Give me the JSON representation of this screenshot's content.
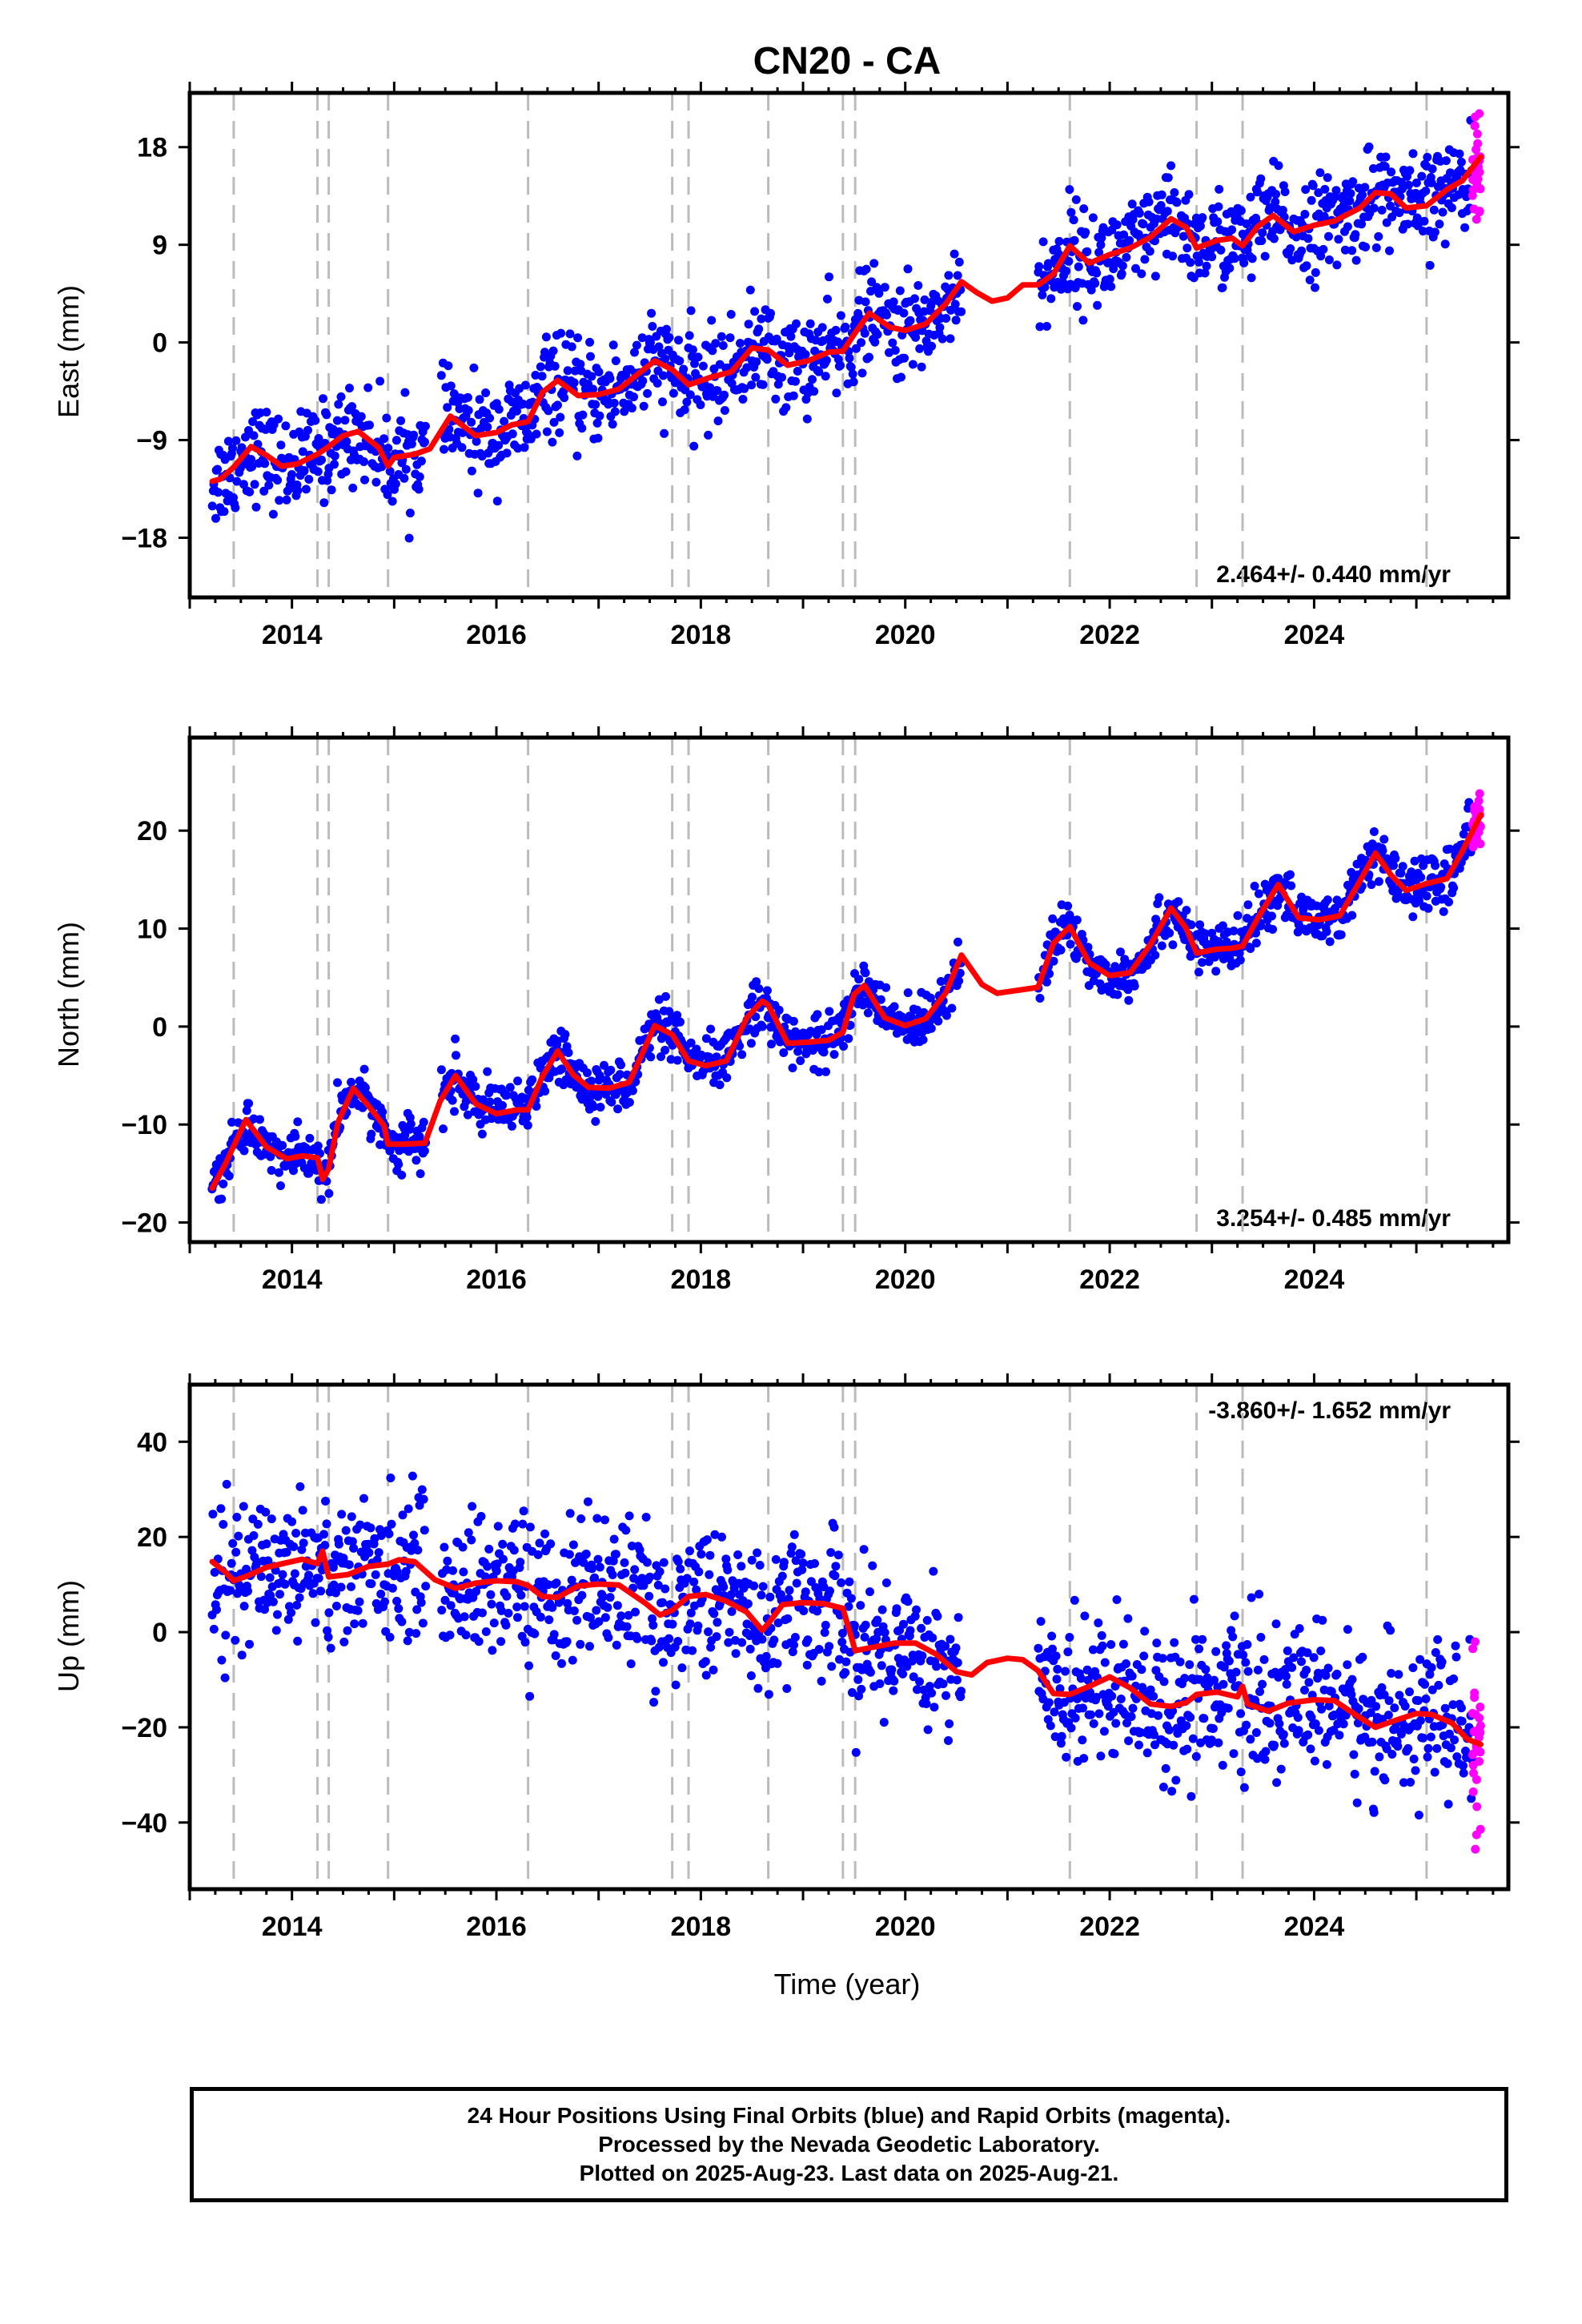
{
  "chart_data": [
    {
      "type": "scatter",
      "title": "CN20 - CA",
      "ylabel": "East (mm)",
      "xlabel": "",
      "xlim": [
        2013.0,
        2025.9
      ],
      "ylim": [
        -23.5,
        23
      ],
      "yticks": [
        -18,
        -9,
        0,
        9,
        18
      ],
      "xticks": [
        2014,
        2016,
        2018,
        2020,
        2022,
        2024
      ],
      "rate": "2.464+/- 0.440 mm/yr",
      "colors": {
        "final": "#0000ff",
        "rapid": "#ff00ff",
        "model": "#ff0000",
        "events": "#bbbbbb"
      },
      "events": [
        2013.43,
        2014.25,
        2014.36,
        2014.94,
        2016.31,
        2017.72,
        2017.88,
        2018.66,
        2019.39,
        2019.51,
        2021.61,
        2022.85,
        2023.3,
        2025.1
      ],
      "gaps": [
        [
          2015.31,
          2015.46
        ],
        [
          2020.55,
          2021.3
        ]
      ],
      "data_start": 2013.22,
      "data_end": 2025.63,
      "rapid_start": 2025.55,
      "scatter_sd": 2.2,
      "model": [
        [
          2013.22,
          -12.8
        ],
        [
          2013.3,
          -12.6
        ],
        [
          2013.43,
          -11.5
        ],
        [
          2013.6,
          -9.6
        ],
        [
          2013.75,
          -10.4
        ],
        [
          2013.9,
          -11.4
        ],
        [
          2014.05,
          -11.2
        ],
        [
          2014.25,
          -10.3
        ],
        [
          2014.36,
          -9.6
        ],
        [
          2014.5,
          -8.6
        ],
        [
          2014.65,
          -8.2
        ],
        [
          2014.85,
          -9.7
        ],
        [
          2014.94,
          -11.4
        ],
        [
          2015.0,
          -10.6
        ],
        [
          2015.2,
          -10.3
        ],
        [
          2015.35,
          -9.8
        ],
        [
          2015.55,
          -6.8
        ],
        [
          2015.8,
          -8.6
        ],
        [
          2016.0,
          -8.3
        ],
        [
          2016.15,
          -7.6
        ],
        [
          2016.31,
          -7.3
        ],
        [
          2016.45,
          -4.6
        ],
        [
          2016.6,
          -3.5
        ],
        [
          2016.8,
          -4.9
        ],
        [
          2017.0,
          -4.8
        ],
        [
          2017.2,
          -4.3
        ],
        [
          2017.4,
          -2.8
        ],
        [
          2017.55,
          -1.7
        ],
        [
          2017.72,
          -2.5
        ],
        [
          2017.88,
          -3.9
        ],
        [
          2018.1,
          -3.2
        ],
        [
          2018.3,
          -2.7
        ],
        [
          2018.5,
          -0.5
        ],
        [
          2018.66,
          -0.7
        ],
        [
          2018.85,
          -2.1
        ],
        [
          2019.05,
          -1.7
        ],
        [
          2019.25,
          -0.9
        ],
        [
          2019.39,
          -0.8
        ],
        [
          2019.51,
          0.9
        ],
        [
          2019.65,
          2.7
        ],
        [
          2019.85,
          1.4
        ],
        [
          2020.0,
          1.1
        ],
        [
          2020.2,
          1.7
        ],
        [
          2020.4,
          3.6
        ],
        [
          2020.55,
          5.6
        ],
        [
          2020.7,
          4.6
        ],
        [
          2020.85,
          3.8
        ],
        [
          2021.0,
          4.1
        ],
        [
          2021.15,
          5.3
        ],
        [
          2021.3,
          5.3
        ],
        [
          2021.45,
          6.3
        ],
        [
          2021.61,
          8.9
        ],
        [
          2021.8,
          7.3
        ],
        [
          2022.0,
          8.1
        ],
        [
          2022.2,
          8.7
        ],
        [
          2022.4,
          9.7
        ],
        [
          2022.6,
          11.4
        ],
        [
          2022.75,
          10.6
        ],
        [
          2022.85,
          8.7
        ],
        [
          2023.05,
          9.4
        ],
        [
          2023.2,
          9.6
        ],
        [
          2023.3,
          8.9
        ],
        [
          2023.45,
          10.7
        ],
        [
          2023.6,
          11.7
        ],
        [
          2023.8,
          10.2
        ],
        [
          2024.0,
          10.8
        ],
        [
          2024.2,
          11.2
        ],
        [
          2024.45,
          12.4
        ],
        [
          2024.6,
          13.8
        ],
        [
          2024.75,
          13.7
        ],
        [
          2024.9,
          12.4
        ],
        [
          2025.1,
          12.6
        ],
        [
          2025.3,
          14.1
        ],
        [
          2025.45,
          14.9
        ],
        [
          2025.63,
          17.1
        ]
      ]
    },
    {
      "type": "scatter",
      "title": "",
      "ylabel": "North (mm)",
      "xlabel": "",
      "xlim": [
        2013.0,
        2025.9
      ],
      "ylim": [
        -22,
        29.5
      ],
      "yticks": [
        -20,
        -10,
        0,
        10,
        20
      ],
      "xticks": [
        2014,
        2016,
        2018,
        2020,
        2022,
        2024
      ],
      "rate": "3.254+/- 0.485 mm/yr",
      "colors": {
        "final": "#0000ff",
        "rapid": "#ff00ff",
        "model": "#ff0000",
        "events": "#bbbbbb"
      },
      "events": [
        2013.43,
        2014.25,
        2014.36,
        2014.94,
        2016.31,
        2017.72,
        2017.88,
        2018.66,
        2019.39,
        2019.51,
        2021.61,
        2022.85,
        2023.3,
        2025.1
      ],
      "gaps": [
        [
          2015.31,
          2015.46
        ],
        [
          2020.55,
          2021.3
        ]
      ],
      "data_start": 2013.22,
      "data_end": 2025.63,
      "rapid_start": 2025.55,
      "scatter_sd": 1.3,
      "model": [
        [
          2013.22,
          -16.5
        ],
        [
          2013.35,
          -14.0
        ],
        [
          2013.55,
          -9.5
        ],
        [
          2013.75,
          -12.3
        ],
        [
          2013.95,
          -13.5
        ],
        [
          2014.1,
          -13.2
        ],
        [
          2014.25,
          -13.4
        ],
        [
          2014.3,
          -15.6
        ],
        [
          2014.36,
          -14.5
        ],
        [
          2014.45,
          -9.8
        ],
        [
          2014.6,
          -6.3
        ],
        [
          2014.75,
          -8.1
        ],
        [
          2014.9,
          -10.1
        ],
        [
          2014.94,
          -12.0
        ],
        [
          2015.1,
          -12.0
        ],
        [
          2015.3,
          -11.9
        ],
        [
          2015.45,
          -7.6
        ],
        [
          2015.6,
          -5.0
        ],
        [
          2015.8,
          -7.9
        ],
        [
          2016.0,
          -8.9
        ],
        [
          2016.2,
          -8.5
        ],
        [
          2016.31,
          -8.5
        ],
        [
          2016.45,
          -5.1
        ],
        [
          2016.6,
          -2.5
        ],
        [
          2016.75,
          -4.9
        ],
        [
          2016.9,
          -6.2
        ],
        [
          2017.1,
          -6.3
        ],
        [
          2017.3,
          -5.7
        ],
        [
          2017.55,
          0.1
        ],
        [
          2017.72,
          -0.8
        ],
        [
          2017.88,
          -3.5
        ],
        [
          2018.05,
          -4.0
        ],
        [
          2018.25,
          -3.5
        ],
        [
          2018.45,
          0.9
        ],
        [
          2018.6,
          2.6
        ],
        [
          2018.66,
          2.2
        ],
        [
          2018.85,
          -1.7
        ],
        [
          2019.05,
          -1.6
        ],
        [
          2019.25,
          -1.4
        ],
        [
          2019.39,
          -0.6
        ],
        [
          2019.5,
          3.3
        ],
        [
          2019.6,
          4.2
        ],
        [
          2019.8,
          0.9
        ],
        [
          2020.0,
          0.1
        ],
        [
          2020.2,
          0.8
        ],
        [
          2020.4,
          3.5
        ],
        [
          2020.55,
          7.3
        ],
        [
          2020.75,
          4.3
        ],
        [
          2020.9,
          3.4
        ],
        [
          2021.1,
          3.7
        ],
        [
          2021.3,
          4.0
        ],
        [
          2021.45,
          8.5
        ],
        [
          2021.61,
          10.2
        ],
        [
          2021.8,
          6.5
        ],
        [
          2022.0,
          5.2
        ],
        [
          2022.2,
          5.5
        ],
        [
          2022.4,
          8.4
        ],
        [
          2022.6,
          12.1
        ],
        [
          2022.75,
          10.0
        ],
        [
          2022.85,
          7.5
        ],
        [
          2023.05,
          7.9
        ],
        [
          2023.2,
          8.0
        ],
        [
          2023.3,
          8.2
        ],
        [
          2023.45,
          11.1
        ],
        [
          2023.65,
          14.5
        ],
        [
          2023.85,
          11.1
        ],
        [
          2024.05,
          10.9
        ],
        [
          2024.25,
          11.3
        ],
        [
          2024.45,
          14.9
        ],
        [
          2024.6,
          17.7
        ],
        [
          2024.75,
          15.5
        ],
        [
          2024.9,
          13.9
        ],
        [
          2025.1,
          14.6
        ],
        [
          2025.3,
          15.1
        ],
        [
          2025.45,
          17.9
        ],
        [
          2025.63,
          21.6
        ]
      ]
    },
    {
      "type": "scatter",
      "title": "",
      "ylabel": "Up (mm)",
      "xlabel": "Time (year)",
      "xlim": [
        2013.0,
        2025.9
      ],
      "ylim": [
        -54,
        52
      ],
      "yticks": [
        -40,
        -20,
        0,
        20,
        40
      ],
      "xticks": [
        2014,
        2016,
        2018,
        2020,
        2022,
        2024
      ],
      "rate": "-3.860+/- 1.652 mm/yr",
      "colors": {
        "final": "#0000ff",
        "rapid": "#ff00ff",
        "model": "#ff0000",
        "events": "#bbbbbb"
      },
      "events": [
        2013.43,
        2014.25,
        2014.36,
        2014.94,
        2016.31,
        2017.72,
        2017.88,
        2018.66,
        2019.39,
        2019.51,
        2021.61,
        2022.85,
        2023.3,
        2025.1
      ],
      "gaps": [
        [
          2015.31,
          2015.46
        ],
        [
          2020.55,
          2021.3
        ]
      ],
      "data_start": 2013.22,
      "data_end": 2025.63,
      "rapid_start": 2025.55,
      "scatter_sd": 7.5,
      "model": [
        [
          2013.22,
          14.8
        ],
        [
          2013.35,
          12.6
        ],
        [
          2013.43,
          10.8
        ],
        [
          2013.55,
          11.7
        ],
        [
          2013.75,
          13.6
        ],
        [
          2013.95,
          14.6
        ],
        [
          2014.1,
          15.3
        ],
        [
          2014.25,
          14.4
        ],
        [
          2014.3,
          17.0
        ],
        [
          2014.36,
          11.6
        ],
        [
          2014.55,
          12.1
        ],
        [
          2014.75,
          13.8
        ],
        [
          2014.94,
          14.3
        ],
        [
          2015.05,
          15.2
        ],
        [
          2015.2,
          14.8
        ],
        [
          2015.4,
          11.0
        ],
        [
          2015.6,
          9.2
        ],
        [
          2015.8,
          10.3
        ],
        [
          2016.0,
          10.8
        ],
        [
          2016.2,
          10.6
        ],
        [
          2016.31,
          9.8
        ],
        [
          2016.45,
          7.5
        ],
        [
          2016.6,
          7.3
        ],
        [
          2016.8,
          9.7
        ],
        [
          2017.0,
          10.1
        ],
        [
          2017.2,
          9.9
        ],
        [
          2017.45,
          6.2
        ],
        [
          2017.6,
          3.6
        ],
        [
          2017.72,
          4.6
        ],
        [
          2017.88,
          7.5
        ],
        [
          2018.05,
          7.9
        ],
        [
          2018.25,
          6.5
        ],
        [
          2018.45,
          4.2
        ],
        [
          2018.6,
          0.4
        ],
        [
          2018.66,
          1.8
        ],
        [
          2018.8,
          5.8
        ],
        [
          2019.0,
          6.2
        ],
        [
          2019.2,
          6.0
        ],
        [
          2019.39,
          5.0
        ],
        [
          2019.51,
          -3.9
        ],
        [
          2019.7,
          -3.1
        ],
        [
          2019.9,
          -2.3
        ],
        [
          2020.1,
          -2.3
        ],
        [
          2020.3,
          -4.6
        ],
        [
          2020.5,
          -8.3
        ],
        [
          2020.65,
          -9.0
        ],
        [
          2020.8,
          -6.4
        ],
        [
          2021.0,
          -5.5
        ],
        [
          2021.15,
          -5.8
        ],
        [
          2021.3,
          -8.1
        ],
        [
          2021.45,
          -12.9
        ],
        [
          2021.61,
          -13.1
        ],
        [
          2021.8,
          -11.4
        ],
        [
          2022.0,
          -9.4
        ],
        [
          2022.2,
          -11.7
        ],
        [
          2022.4,
          -15.1
        ],
        [
          2022.6,
          -15.6
        ],
        [
          2022.75,
          -14.8
        ],
        [
          2022.85,
          -13.1
        ],
        [
          2023.05,
          -12.6
        ],
        [
          2023.25,
          -13.6
        ],
        [
          2023.3,
          -11.4
        ],
        [
          2023.35,
          -15.1
        ],
        [
          2023.55,
          -16.6
        ],
        [
          2023.75,
          -14.9
        ],
        [
          2024.0,
          -14.2
        ],
        [
          2024.2,
          -14.4
        ],
        [
          2024.4,
          -17.3
        ],
        [
          2024.6,
          -20.0
        ],
        [
          2024.8,
          -18.5
        ],
        [
          2025.0,
          -17.1
        ],
        [
          2025.15,
          -17.3
        ],
        [
          2025.35,
          -19.1
        ],
        [
          2025.5,
          -22.5
        ],
        [
          2025.63,
          -23.6
        ]
      ]
    }
  ],
  "footer": {
    "line1": "24 Hour Positions Using Final Orbits (blue) and Rapid Orbits (magenta).",
    "line2": "Processed by the Nevada Geodetic Laboratory.",
    "line3": "Plotted on 2025-Aug-23. Last data on 2025-Aug-21."
  }
}
